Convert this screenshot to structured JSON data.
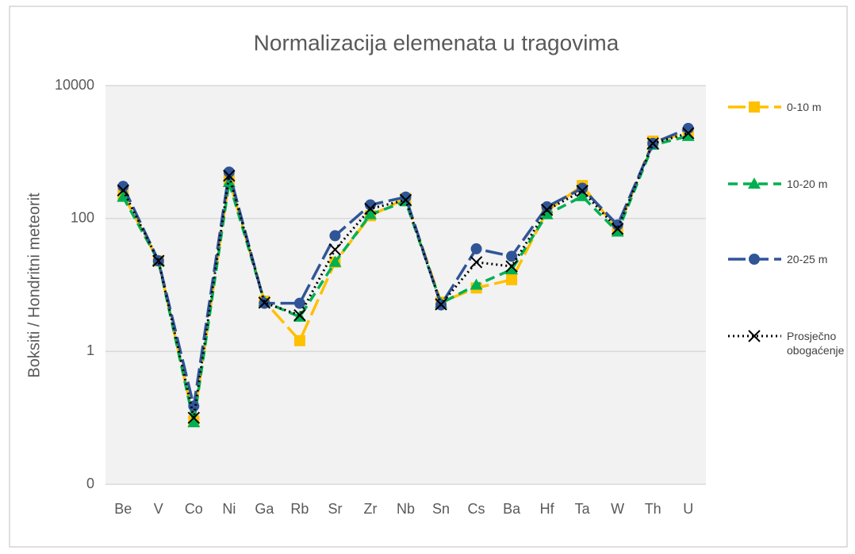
{
  "chart_data": {
    "type": "line",
    "title": "Normalizacija elemenata u tragovima",
    "y_label": "Boksiti / Hondritni meteorit",
    "categories": [
      "Be",
      "V",
      "Co",
      "Ni",
      "Ga",
      "Rb",
      "Sr",
      "Zr",
      "Nb",
      "Sn",
      "Cs",
      "Ba",
      "Hf",
      "Ta",
      "W",
      "Th",
      "U"
    ],
    "ylim": [
      0.01,
      10000
    ],
    "yticks": [
      {
        "value": 0.01,
        "label": "0"
      },
      1,
      100,
      10000
    ],
    "log_scale": true,
    "grid": true,
    "legend": "right",
    "series": [
      {
        "name": "0-10 m",
        "color": "#ffc000",
        "marker": "square",
        "line_style": "long-dash",
        "values": [
          230,
          23,
          0.09,
          380,
          5.7,
          1.45,
          22,
          110,
          200,
          5.5,
          9,
          12,
          130,
          313,
          67,
          1460,
          1920
        ]
      },
      {
        "name": "10-20 m",
        "color": "#00b050",
        "marker": "triangle",
        "line_style": "dash",
        "values": [
          210,
          23,
          0.085,
          350,
          5.6,
          3.3,
          22,
          115,
          180,
          5.3,
          10,
          17,
          115,
          215,
          63,
          1280,
          1730
        ]
      },
      {
        "name": "20-25 m",
        "color": "#2f5597",
        "marker": "circle",
        "line_style": "long-dash",
        "values": [
          305,
          23,
          0.15,
          500,
          5.3,
          5.3,
          55,
          160,
          210,
          5,
          35,
          27,
          150,
          285,
          80,
          1350,
          2270
        ]
      },
      {
        "name": "Prosječno obogaćenje",
        "color": "#000000",
        "marker": "x",
        "line_style": "dot",
        "values": [
          265,
          23,
          0.1,
          440,
          5.4,
          3.5,
          34,
          140,
          190,
          5.1,
          22,
          19,
          135,
          260,
          70,
          1350,
          1920
        ]
      }
    ]
  }
}
